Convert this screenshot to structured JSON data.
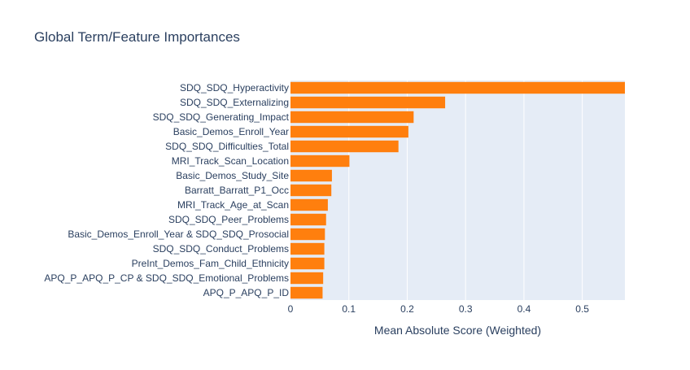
{
  "chart_data": {
    "type": "bar",
    "orientation": "horizontal",
    "title": "Global Term/Feature Importances",
    "xlabel": "Mean Absolute Score (Weighted)",
    "ylabel": "",
    "xlim": [
      0,
      0.573
    ],
    "xticks": [
      0,
      0.1,
      0.2,
      0.3,
      0.4,
      0.5
    ],
    "xtick_labels": [
      "0",
      "0.1",
      "0.2",
      "0.3",
      "0.4",
      "0.5"
    ],
    "grid": true,
    "bar_color": "#ff7f0e",
    "plot_bg": "#e5ecf6",
    "categories": [
      "SDQ_SDQ_Hyperactivity",
      "SDQ_SDQ_Externalizing",
      "SDQ_SDQ_Generating_Impact",
      "Basic_Demos_Enroll_Year",
      "SDQ_SDQ_Difficulties_Total",
      "MRI_Track_Scan_Location",
      "Basic_Demos_Study_Site",
      "Barratt_Barratt_P1_Occ",
      "MRI_Track_Age_at_Scan",
      "SDQ_SDQ_Peer_Problems",
      "Basic_Demos_Enroll_Year & SDQ_SDQ_Prosocial",
      "SDQ_SDQ_Conduct_Problems",
      "PreInt_Demos_Fam_Child_Ethnicity",
      "APQ_P_APQ_P_CP & SDQ_SDQ_Emotional_Problems",
      "APQ_P_APQ_P_ID"
    ],
    "values": [
      0.573,
      0.265,
      0.211,
      0.202,
      0.185,
      0.101,
      0.071,
      0.07,
      0.064,
      0.061,
      0.059,
      0.058,
      0.058,
      0.056,
      0.055
    ]
  }
}
